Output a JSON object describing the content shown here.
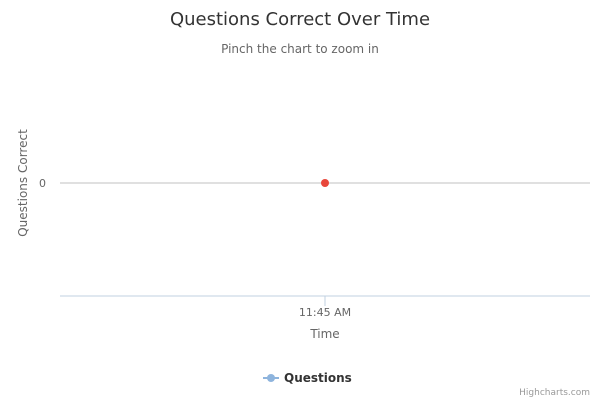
{
  "chart_data": {
    "type": "line",
    "title": "Questions Correct Over Time",
    "subtitle": "Pinch the chart to zoom in",
    "xlabel": "Time",
    "ylabel": "Questions Correct",
    "x_tick_labels": [
      "11:45 AM"
    ],
    "y_tick_labels": [
      "0"
    ],
    "series": [
      {
        "name": "Questions",
        "color": "#8eb4dd",
        "marker_color": "#e8473b",
        "points": [
          {
            "x": "11:45 AM",
            "y": 0
          }
        ]
      }
    ],
    "grid": true,
    "legend_position": "bottom-center"
  },
  "credits": "Highcharts.com",
  "colors": {
    "gridline": "#c0c0c0",
    "axis_line": "#c0d0e0",
    "text": "#333333",
    "muted_text": "#666666"
  }
}
